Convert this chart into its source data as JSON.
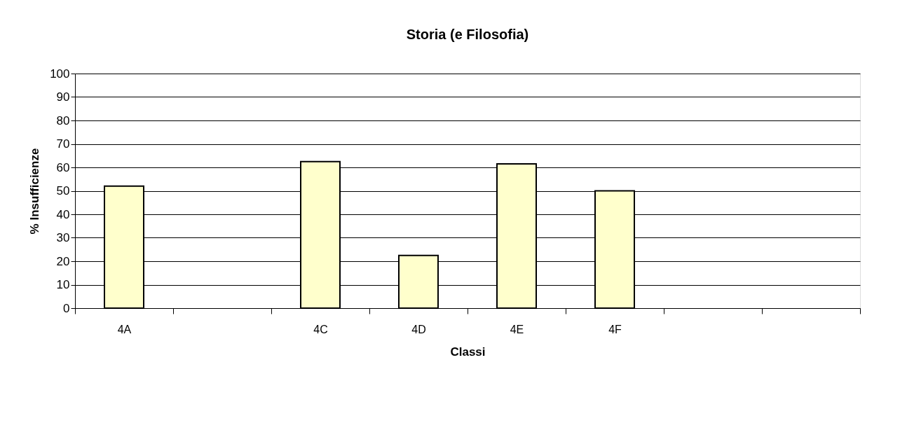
{
  "chart_data": {
    "type": "bar",
    "title": "Storia (e Filosofia)",
    "xlabel": "Classi",
    "ylabel": "% Insufficienze",
    "categories": [
      "4A",
      null,
      "4C",
      "4D",
      "4E",
      "4F",
      null,
      null
    ],
    "values": [
      52,
      null,
      62.5,
      22.5,
      61.5,
      50,
      null,
      null
    ],
    "color": "#ffffcc",
    "ylim": [
      0,
      100
    ],
    "yticks": [
      0,
      10,
      20,
      30,
      40,
      50,
      60,
      70,
      80,
      90,
      100
    ],
    "grid": "y"
  }
}
